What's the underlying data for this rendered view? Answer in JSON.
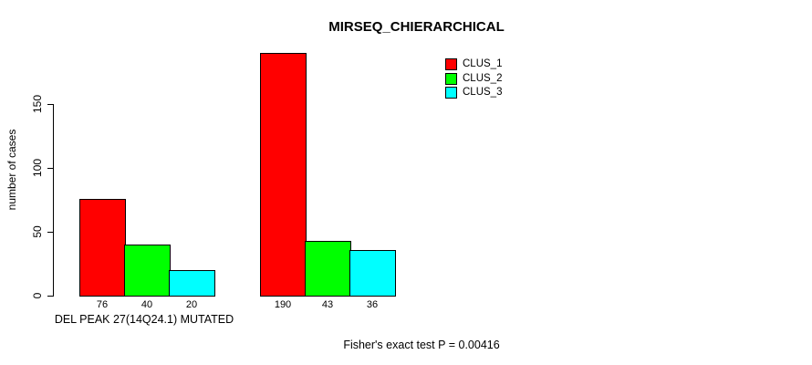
{
  "chart_data": {
    "type": "bar",
    "title": "MIRSEQ_CHIERARCHICAL",
    "ylabel": "number of cases",
    "xlabel": "DEL PEAK 27(14Q24.1) MUTATED",
    "annotation": "Fisher's exact test P = 0.00416",
    "yticks": [
      0,
      50,
      100,
      150
    ],
    "ylim": [
      0,
      190
    ],
    "grid": false,
    "legend_position": "top-right",
    "bar_value_labels_shown": true,
    "categories": [
      "DEL PEAK 27(14Q24.1) MUTATED",
      ""
    ],
    "series": [
      {
        "name": "CLUS_1",
        "color": "#FF0000",
        "values": [
          76,
          190
        ]
      },
      {
        "name": "CLUS_2",
        "color": "#00FF00",
        "values": [
          40,
          43
        ]
      },
      {
        "name": "CLUS_3",
        "color": "#00FFFF",
        "values": [
          20,
          36
        ]
      }
    ]
  },
  "colors": {
    "background": "#FFFFFF",
    "axis": "#000000",
    "text": "#000000",
    "clus_1": "#FF0000",
    "clus_2": "#00FF00",
    "clus_3": "#00FFFF"
  }
}
